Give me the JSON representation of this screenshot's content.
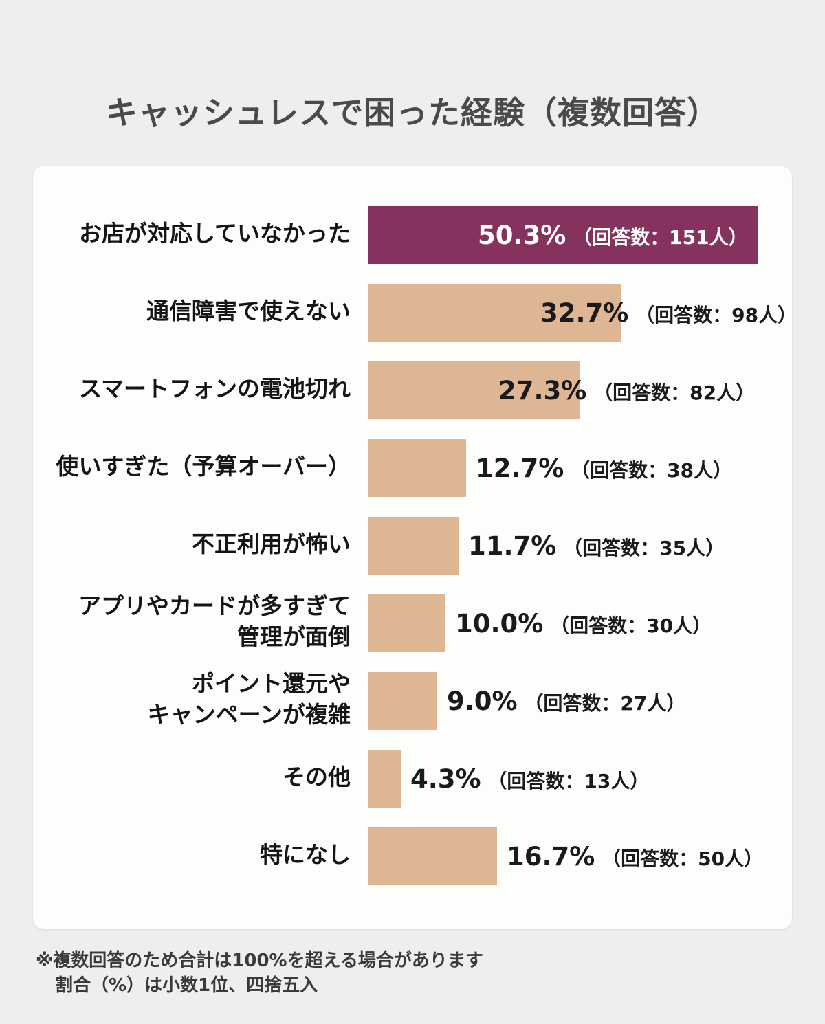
{
  "title": "キャッシュレスで困った経験（複数回答）",
  "notes": {
    "line1": "※複数回答のため合計は100%を超える場合があります",
    "line2": "割合（%）は小数1位、四捨五入"
  },
  "colors": {
    "highlight": "#86325f",
    "bar": "#dfb693",
    "background": "#efeeec"
  },
  "chart_data": {
    "type": "bar",
    "orientation": "horizontal",
    "title": "キャッシュレスで困った経験（複数回答）",
    "xlim": [
      0,
      50.3
    ],
    "grid": false,
    "categories": [
      "お店が対応していなかった",
      "通信障害で使えない",
      "スマートフォンの電池切れ",
      "使いすぎた（予算オーバー）",
      "不正利用が怖い",
      "アプリやカードが多すぎて\n管理が面倒",
      "ポイント還元や\nキャンペーンが複雑",
      "その他",
      "特になし"
    ],
    "values": [
      50.3,
      32.7,
      27.3,
      12.7,
      11.7,
      10.0,
      9.0,
      4.3,
      16.7
    ],
    "respondents": [
      151,
      98,
      82,
      38,
      35,
      30,
      27,
      13,
      50
    ],
    "value_labels": [
      "50.3%",
      "32.7%",
      "27.3%",
      "12.7%",
      "11.7%",
      "10.0%",
      "9.0%",
      "4.3%",
      "16.7%"
    ],
    "count_labels": [
      "（回答数：151人）",
      "（回答数：98人）",
      "（回答数：82人）",
      "（回答数：38人）",
      "（回答数：35人）",
      "（回答数：30人）",
      "（回答数：27人）",
      "（回答数：13人）",
      "（回答数：50人）"
    ],
    "highlight_index": 0
  }
}
